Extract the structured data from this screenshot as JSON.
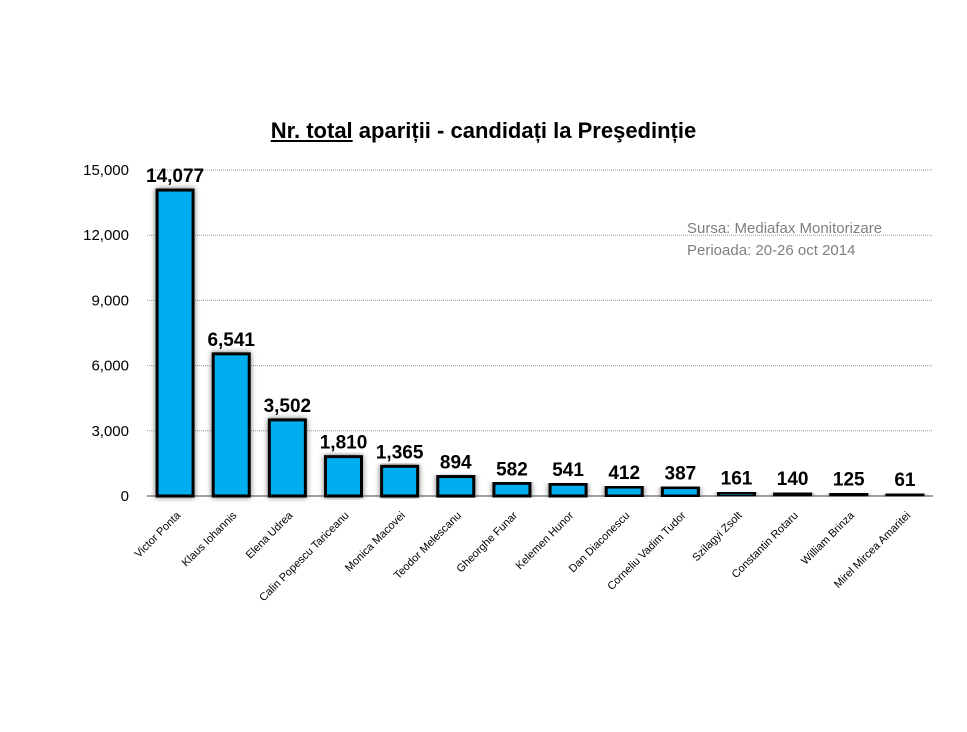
{
  "chart_data": {
    "type": "bar",
    "title_part1": "Nr. total",
    "title_part2": " apariții - candidați la Preşedinție",
    "source_line1": "Sursa: Mediafax Monitorizare",
    "source_line2": "Perioada: 20-26 oct 2014",
    "categories": [
      "Victor Ponta",
      "Klaus Iohannis",
      "Elena Udrea",
      "Calin Popescu Tariceanu",
      "Monica Macovei",
      "Teodor Melescanu",
      "Gheorghe Funar",
      "Kelemen Hunor",
      "Dan Diaconescu",
      "Corneliu Vadim Tudor",
      "Szilagyi Zsolt",
      "Constantin Rotaru",
      "William Brinza",
      "Mirel Mircea Amaritei"
    ],
    "values": [
      14077,
      6541,
      3502,
      1810,
      1365,
      894,
      582,
      541,
      412,
      387,
      161,
      140,
      125,
      61
    ],
    "value_labels": [
      "14,077",
      "6,541",
      "3,502",
      "1,810",
      "1,365",
      "894",
      "582",
      "541",
      "412",
      "387",
      "161",
      "140",
      "125",
      "61"
    ],
    "yticks": [
      0,
      3000,
      6000,
      9000,
      12000,
      15000
    ],
    "ytick_labels": [
      "0",
      "3,000",
      "6,000",
      "9,000",
      "12,000",
      "15,000"
    ],
    "ylim": [
      0,
      15000
    ],
    "grid": true,
    "bar_color": "#00aeef",
    "bar_border": "#000000"
  }
}
